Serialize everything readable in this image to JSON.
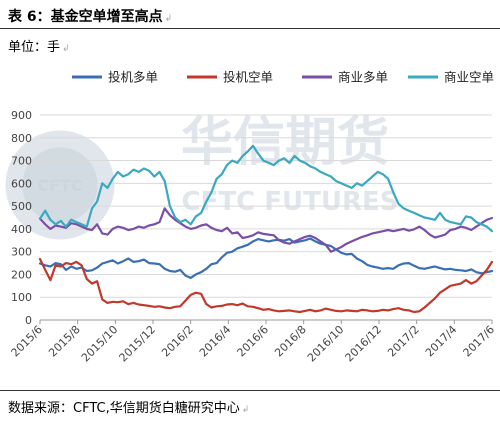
{
  "header": {
    "title": "表 6：基金空单增至高点",
    "unit": "单位：手"
  },
  "footer": {
    "source": "数据来源：CFTC,华信期货白糖研究中心"
  },
  "watermark": {
    "cn": "华信期货",
    "en": "CFTC FUTURES",
    "seal": "CFTC"
  },
  "chart_data": {
    "type": "line",
    "title": "",
    "xlabel": "",
    "ylabel": "",
    "ylim": [
      0,
      900
    ],
    "yticks": [
      0,
      100,
      200,
      300,
      400,
      500,
      600,
      700,
      800,
      900
    ],
    "grid": true,
    "legend_position": "top",
    "x_tick_labels": [
      "2015/6",
      "2015/8",
      "2015/10",
      "2015/12",
      "2016/2",
      "2016/4",
      "2016/6",
      "2016/8",
      "2016/10",
      "2016/12",
      "2017/2",
      "2017/4",
      "2017/6"
    ],
    "x_start": "2015-06",
    "x_end": "2017-06",
    "series": [
      {
        "name": "投机多单",
        "color": "#3a6fb3",
        "values": [
          248,
          240,
          235,
          250,
          245,
          220,
          235,
          225,
          230,
          215,
          218,
          230,
          248,
          255,
          262,
          248,
          258,
          270,
          255,
          258,
          265,
          250,
          248,
          245,
          225,
          215,
          212,
          220,
          195,
          185,
          200,
          210,
          225,
          245,
          250,
          275,
          295,
          300,
          315,
          322,
          330,
          345,
          355,
          350,
          345,
          350,
          352,
          348,
          355,
          340,
          345,
          350,
          358,
          345,
          335,
          330,
          325,
          310,
          295,
          288,
          290,
          270,
          258,
          242,
          235,
          230,
          225,
          228,
          225,
          240,
          248,
          250,
          238,
          228,
          225,
          230,
          235,
          228,
          222,
          225,
          220,
          218,
          215,
          222,
          210,
          205,
          210,
          215
        ]
      },
      {
        "name": "投机空单",
        "color": "#c0392b",
        "values": [
          268,
          220,
          175,
          240,
          235,
          250,
          245,
          255,
          240,
          180,
          160,
          170,
          90,
          75,
          80,
          78,
          82,
          70,
          75,
          68,
          65,
          62,
          58,
          60,
          55,
          52,
          58,
          60,
          85,
          110,
          120,
          115,
          70,
          55,
          60,
          62,
          68,
          70,
          65,
          72,
          60,
          58,
          52,
          45,
          48,
          42,
          38,
          40,
          42,
          38,
          35,
          40,
          45,
          38,
          42,
          50,
          45,
          40,
          38,
          42,
          40,
          38,
          45,
          42,
          38,
          40,
          45,
          42,
          48,
          52,
          45,
          42,
          35,
          38,
          55,
          75,
          95,
          120,
          135,
          150,
          155,
          160,
          175,
          160,
          170,
          195,
          220,
          255
        ]
      },
      {
        "name": "商业多单",
        "color": "#7a4fa8",
        "values": [
          445,
          420,
          400,
          415,
          410,
          405,
          425,
          420,
          410,
          400,
          395,
          420,
          380,
          375,
          400,
          410,
          405,
          395,
          400,
          410,
          405,
          415,
          420,
          430,
          490,
          460,
          440,
          425,
          410,
          400,
          405,
          415,
          420,
          405,
          395,
          390,
          405,
          380,
          385,
          360,
          365,
          372,
          385,
          378,
          375,
          372,
          350,
          340,
          335,
          345,
          355,
          365,
          370,
          360,
          345,
          330,
          300,
          310,
          320,
          335,
          345,
          355,
          365,
          372,
          380,
          385,
          390,
          395,
          390,
          395,
          400,
          392,
          398,
          410,
          395,
          375,
          362,
          368,
          375,
          395,
          400,
          410,
          405,
          395,
          410,
          425,
          440,
          448
        ]
      },
      {
        "name": "商业空单",
        "color": "#3aa8c0",
        "values": [
          445,
          480,
          440,
          420,
          435,
          410,
          440,
          430,
          420,
          410,
          490,
          520,
          600,
          580,
          620,
          650,
          630,
          640,
          660,
          650,
          665,
          655,
          630,
          650,
          610,
          500,
          450,
          430,
          440,
          420,
          455,
          470,
          520,
          560,
          620,
          640,
          680,
          700,
          690,
          720,
          740,
          765,
          730,
          700,
          690,
          680,
          700,
          710,
          690,
          720,
          700,
          690,
          675,
          665,
          650,
          640,
          630,
          610,
          600,
          590,
          580,
          600,
          590,
          610,
          630,
          650,
          640,
          620,
          560,
          510,
          490,
          480,
          470,
          460,
          450,
          445,
          440,
          470,
          440,
          430,
          425,
          420,
          455,
          450,
          430,
          420,
          410,
          390
        ]
      }
    ]
  }
}
